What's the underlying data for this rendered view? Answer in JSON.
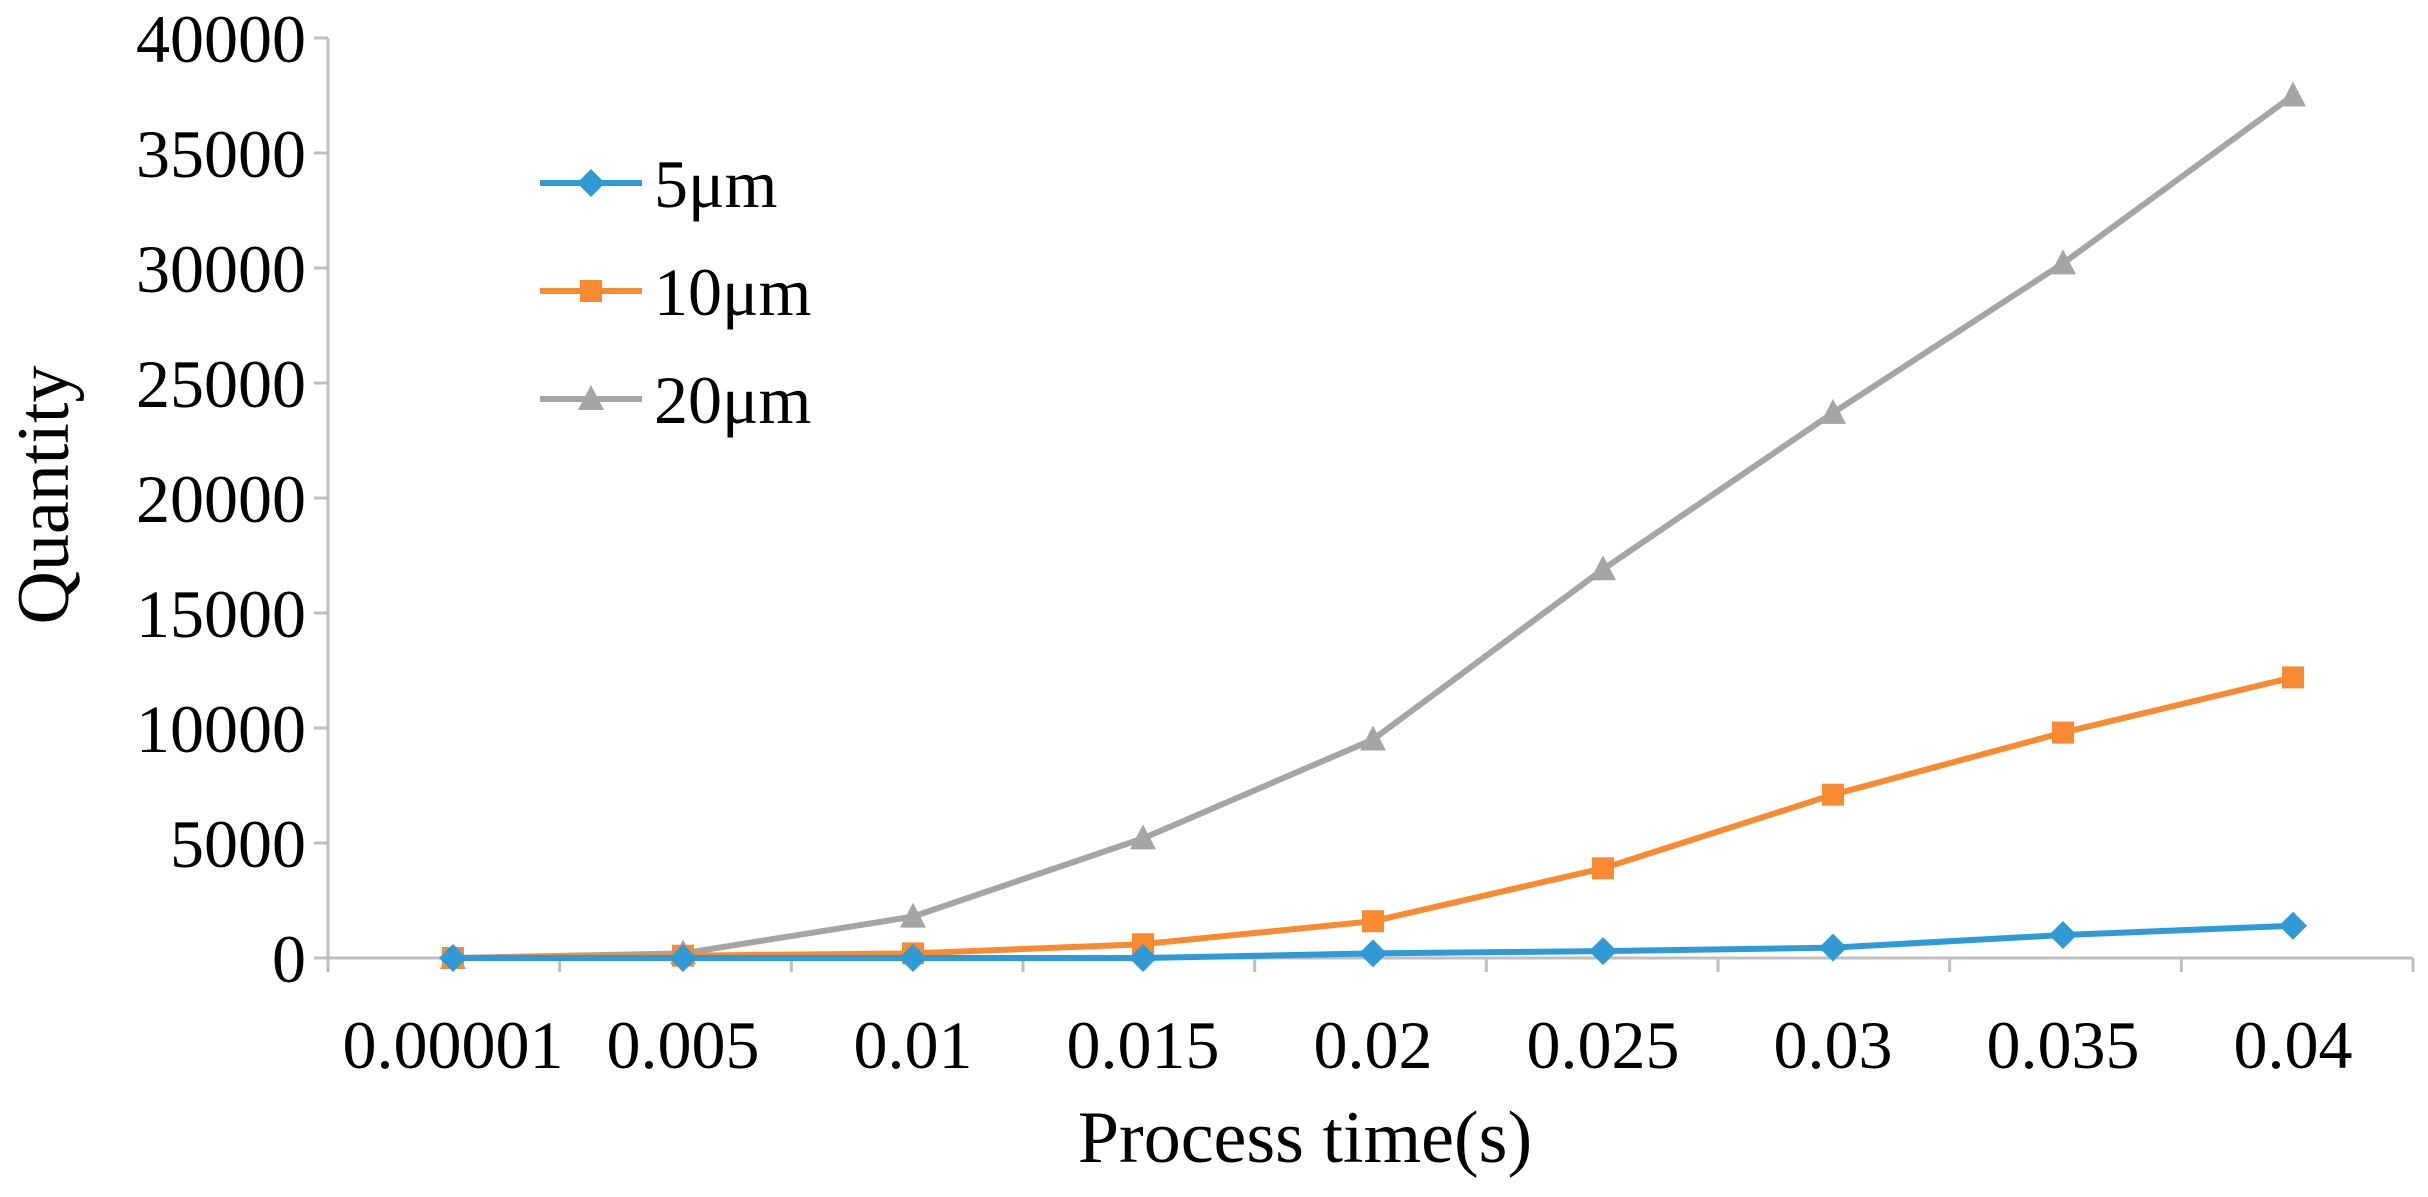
{
  "chart_data": {
    "type": "line",
    "title": "",
    "xlabel": "Process time(s)",
    "ylabel": "Quantity",
    "categories": [
      "0.00001",
      "0.005",
      "0.01",
      "0.015",
      "0.02",
      "0.025",
      "0.03",
      "0.035",
      "0.04"
    ],
    "ylim": [
      0,
      40000
    ],
    "yticks": [
      "0",
      "5000",
      "10000",
      "15000",
      "20000",
      "25000",
      "30000",
      "35000",
      "40000"
    ],
    "grid": false,
    "legend_position": "top-left",
    "series": [
      {
        "name": "5μm",
        "color": "#2E9BD6",
        "marker": "diamond",
        "values": [
          0,
          0,
          0,
          0,
          200,
          300,
          450,
          1000,
          1400
        ]
      },
      {
        "name": "10μm",
        "color": "#F98A2F",
        "marker": "square",
        "values": [
          0,
          100,
          200,
          600,
          1600,
          3900,
          7100,
          9800,
          12200
        ]
      },
      {
        "name": "20μm",
        "color": "#A5A5A5",
        "marker": "triangle",
        "values": [
          0,
          200,
          1800,
          5200,
          9500,
          16900,
          23700,
          30200,
          37500
        ]
      }
    ]
  }
}
